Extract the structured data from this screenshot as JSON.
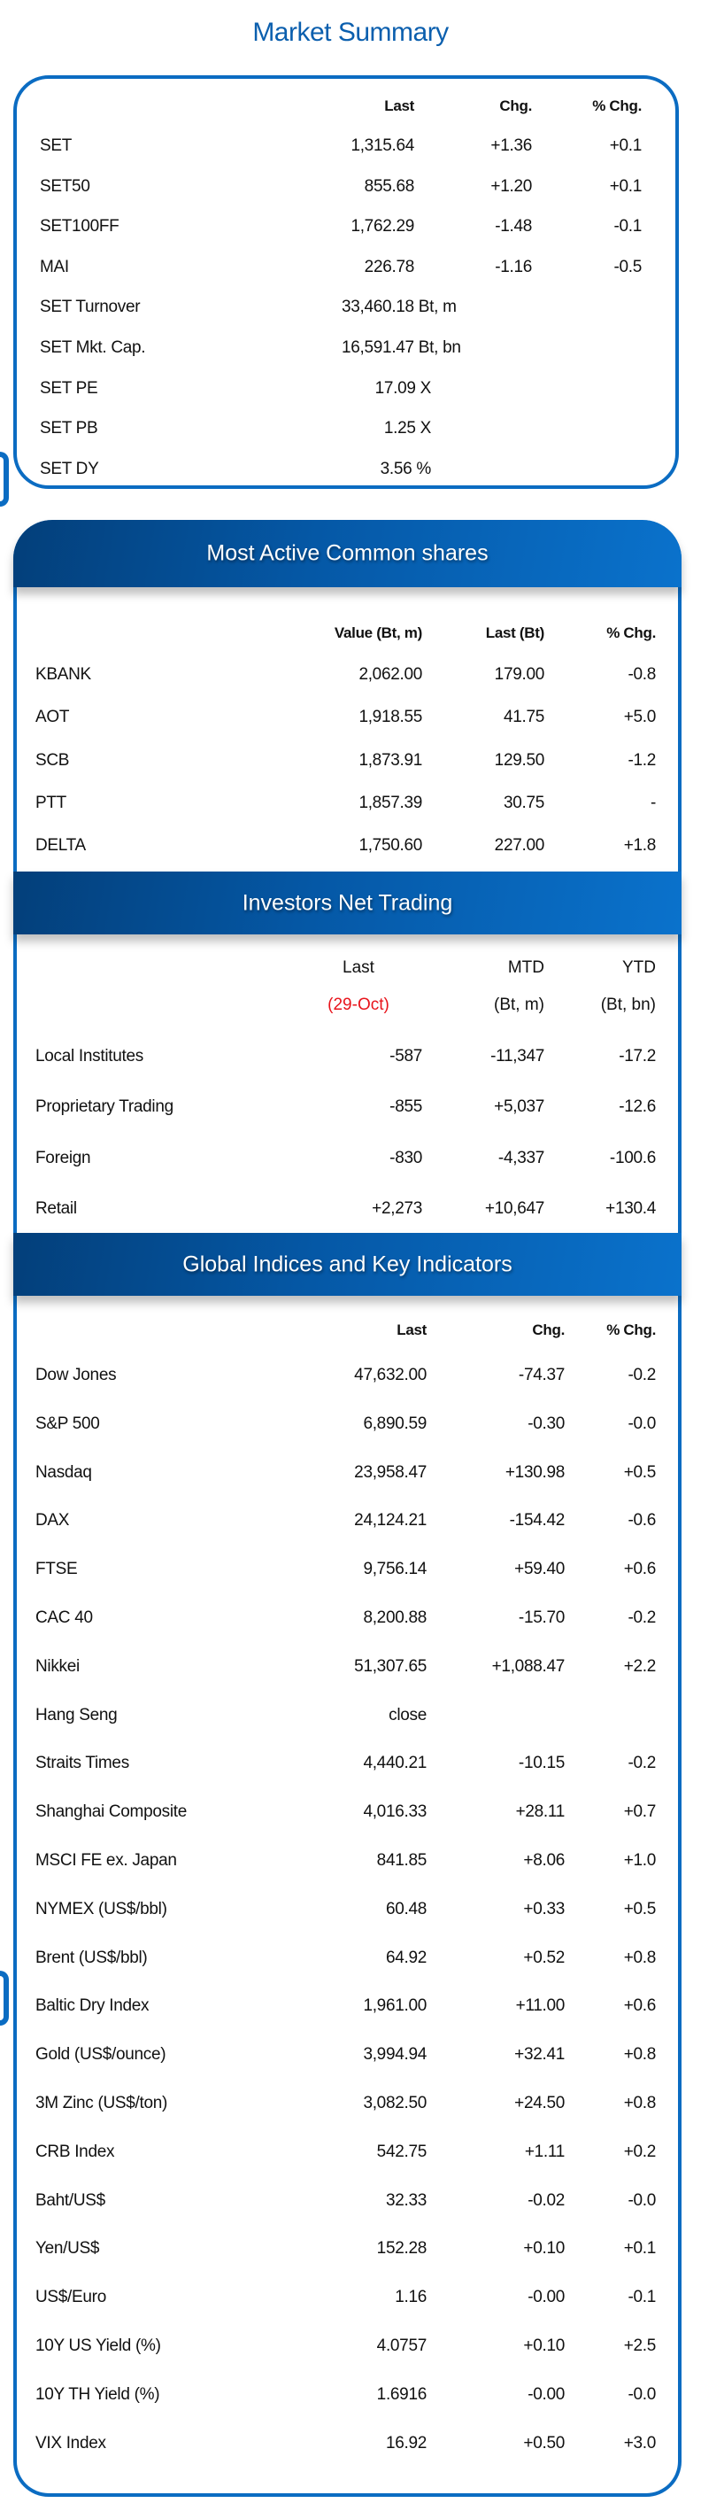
{
  "title": "Market Summary",
  "market_summary": {
    "columns": [
      "Last",
      "Chg.",
      "% Chg."
    ],
    "rows": [
      {
        "name": "SET",
        "last": "1,315.64",
        "chg": "+1.36",
        "pct": "+0.1"
      },
      {
        "name": "SET50",
        "last": "855.68",
        "chg": "+1.20",
        "pct": "+0.1"
      },
      {
        "name": "SET100FF",
        "last": "1,762.29",
        "chg": "-1.48",
        "pct": "-0.1"
      },
      {
        "name": "MAI",
        "last": "226.78",
        "chg": "-1.16",
        "pct": "-0.5"
      },
      {
        "name": "SET Turnover",
        "value": "33,460.18 Bt, m"
      },
      {
        "name": "SET Mkt. Cap.",
        "value": "16,591.47 Bt, bn"
      },
      {
        "name": "SET PE",
        "value": "17.09 X"
      },
      {
        "name": "SET PB",
        "value": "1.25 X"
      },
      {
        "name": "SET DY",
        "value": "3.56 %"
      }
    ]
  },
  "most_active": {
    "title": "Most Active Common shares",
    "columns": [
      "Value (Bt, m)",
      "Last (Bt)",
      "% Chg."
    ],
    "rows": [
      {
        "name": "KBANK",
        "value": "2,062.00",
        "last": "179.00",
        "pct": "-0.8"
      },
      {
        "name": "AOT",
        "value": "1,918.55",
        "last": "41.75",
        "pct": "+5.0"
      },
      {
        "name": "SCB",
        "value": "1,873.91",
        "last": "129.50",
        "pct": "-1.2"
      },
      {
        "name": "PTT",
        "value": "1,857.39",
        "last": "30.75",
        "pct": "-"
      },
      {
        "name": "DELTA",
        "value": "1,750.60",
        "last": "227.00",
        "pct": "+1.8"
      }
    ]
  },
  "investors": {
    "title": "Investors Net Trading",
    "columns": [
      "Last",
      "MTD",
      "YTD"
    ],
    "subcolumns": [
      "(29-Oct)",
      "(Bt, m)",
      "(Bt, bn)"
    ],
    "date_color": "#e8141b",
    "rows": [
      {
        "name": "Local Institutes",
        "last": "-587",
        "mtd": "-11,347",
        "ytd": "-17.2"
      },
      {
        "name": "Proprietary Trading",
        "last": "-855",
        "mtd": "+5,037",
        "ytd": "-12.6"
      },
      {
        "name": "Foreign",
        "last": "-830",
        "mtd": "-4,337",
        "ytd": "-100.6"
      },
      {
        "name": "Retail",
        "last": "+2,273",
        "mtd": "+10,647",
        "ytd": "+130.4"
      }
    ]
  },
  "global": {
    "title": "Global Indices and Key Indicators",
    "columns": [
      "Last",
      "Chg.",
      "% Chg."
    ],
    "rows": [
      {
        "name": "Dow Jones",
        "last": "47,632.00",
        "chg": "-74.37",
        "pct": "-0.2"
      },
      {
        "name": "S&P 500",
        "last": "6,890.59",
        "chg": "-0.30",
        "pct": "-0.0"
      },
      {
        "name": "Nasdaq",
        "last": "23,958.47",
        "chg": "+130.98",
        "pct": "+0.5"
      },
      {
        "name": "DAX",
        "last": "24,124.21",
        "chg": "-154.42",
        "pct": "-0.6"
      },
      {
        "name": "FTSE",
        "last": "9,756.14",
        "chg": "+59.40",
        "pct": "+0.6"
      },
      {
        "name": "CAC 40",
        "last": "8,200.88",
        "chg": "-15.70",
        "pct": "-0.2"
      },
      {
        "name": "Nikkei",
        "last": "51,307.65",
        "chg": "+1,088.47",
        "pct": "+2.2"
      },
      {
        "name": "Hang Seng",
        "last": "close",
        "chg": "",
        "pct": ""
      },
      {
        "name": "Straits Times",
        "last": "4,440.21",
        "chg": "-10.15",
        "pct": "-0.2"
      },
      {
        "name": "Shanghai Composite",
        "last": "4,016.33",
        "chg": "+28.11",
        "pct": "+0.7"
      },
      {
        "name": "MSCI FE ex. Japan",
        "last": "841.85",
        "chg": "+8.06",
        "pct": "+1.0"
      },
      {
        "name": "NYMEX (US$/bbl)",
        "last": "60.48",
        "chg": "+0.33",
        "pct": "+0.5"
      },
      {
        "name": "Brent (US$/bbl)",
        "last": "64.92",
        "chg": "+0.52",
        "pct": "+0.8"
      },
      {
        "name": "Baltic Dry Index",
        "last": "1,961.00",
        "chg": "+11.00",
        "pct": "+0.6"
      },
      {
        "name": "Gold (US$/ounce)",
        "last": "3,994.94",
        "chg": "+32.41",
        "pct": "+0.8"
      },
      {
        "name": "3M Zinc (US$/ton)",
        "last": "3,082.50",
        "chg": "+24.50",
        "pct": "+0.8"
      },
      {
        "name": "CRB Index",
        "last": "542.75",
        "chg": "+1.11",
        "pct": "+0.2"
      },
      {
        "name": "Baht/US$",
        "last": "32.33",
        "chg": "-0.02",
        "pct": "-0.0"
      },
      {
        "name": "Yen/US$",
        "last": "152.28",
        "chg": "+0.10",
        "pct": "+0.1"
      },
      {
        "name": "US$/Euro",
        "last": "1.16",
        "chg": "-0.00",
        "pct": "-0.1"
      },
      {
        "name": "10Y US Yield (%)",
        "last": "4.0757",
        "chg": "+0.10",
        "pct": "+2.5"
      },
      {
        "name": "10Y TH Yield (%)",
        "last": "1.6916",
        "chg": "-0.00",
        "pct": "-0.0"
      },
      {
        "name": "VIX Index",
        "last": "16.92",
        "chg": "+0.50",
        "pct": "+3.0"
      }
    ]
  }
}
